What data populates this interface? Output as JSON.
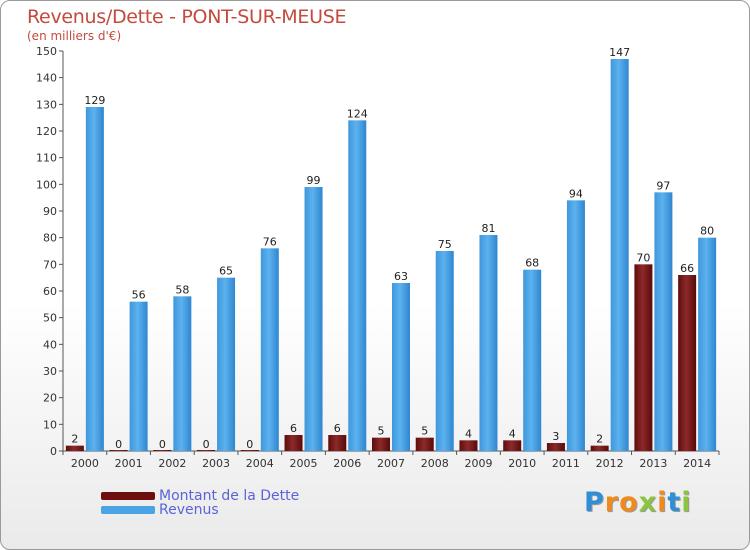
{
  "title": "Revenus/Dette - PONT-SUR-MEUSE",
  "subtitle": "(en milliers d'€)",
  "logo": {
    "letters": [
      "P",
      "r",
      "o",
      "x",
      "i",
      "t",
      "i"
    ],
    "colors": [
      "#2e8fd6",
      "#f08a1c",
      "#f08a1c",
      "#8bc43f",
      "#f08a1c",
      "#2e8fd6",
      "#8bc43f"
    ]
  },
  "legend": [
    {
      "label": "Montant de la Dette",
      "color": "#6b0f0f"
    },
    {
      "label": "Revenus",
      "color": "#4aa3e4"
    }
  ],
  "chart_data": {
    "type": "bar",
    "categories": [
      "2000",
      "2001",
      "2002",
      "2003",
      "2004",
      "2005",
      "2006",
      "2007",
      "2008",
      "2009",
      "2010",
      "2011",
      "2012",
      "2013",
      "2014"
    ],
    "series": [
      {
        "name": "Montant de la Dette",
        "color": "#8a1f1f",
        "values": [
          2,
          0,
          0,
          0,
          0,
          6,
          6,
          5,
          5,
          4,
          4,
          3,
          2,
          70,
          66
        ]
      },
      {
        "name": "Revenus",
        "color": "#4aa3e4",
        "values": [
          129,
          56,
          58,
          65,
          76,
          99,
          124,
          63,
          75,
          81,
          68,
          94,
          147,
          97,
          80
        ]
      }
    ],
    "ylim": [
      0,
      150
    ],
    "yticks": [
      0,
      10,
      20,
      30,
      40,
      50,
      60,
      70,
      80,
      90,
      100,
      110,
      120,
      130,
      140,
      150
    ],
    "grid": false,
    "legend_position": "bottom-left"
  }
}
